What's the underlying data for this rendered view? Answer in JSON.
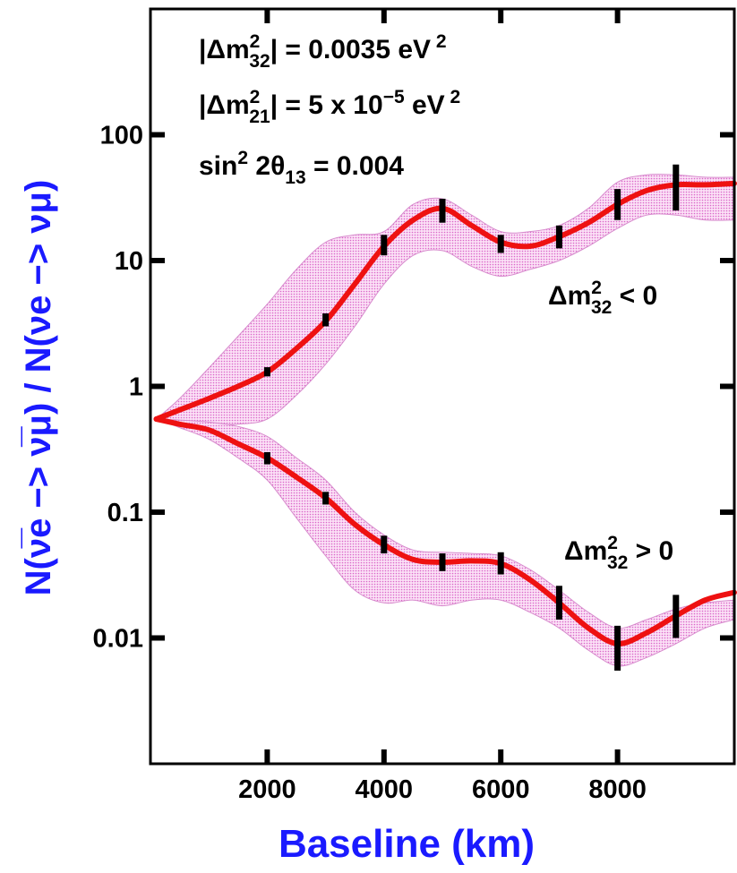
{
  "chart_data": {
    "type": "line",
    "xlabel": "Baseline   (km)",
    "ylabel": "N(ν̅e −> ν̅μ) / N(νe −> νμ)",
    "y_scale": "log",
    "xlim": [
      0,
      10000
    ],
    "ylim": [
      0.001,
      1000
    ],
    "x_ticks": [
      2000,
      4000,
      6000,
      8000
    ],
    "y_ticks": [
      0.01,
      0.1,
      1,
      10,
      100
    ],
    "y_tick_labels": [
      "0.01",
      "0.1",
      "1",
      "10",
      "100"
    ],
    "grid": false,
    "colors": {
      "curve": "#ee1111",
      "band": "#f3b6ea",
      "error_bar": "#000000",
      "axis_title": "#1a1aff"
    },
    "annotations": {
      "line1": {
        "prefix": "|Δm",
        "sup": "2",
        "sub": "32",
        "rest": "| = 0.0035 eV",
        "unit_sup": " 2"
      },
      "line2": {
        "prefix": "|Δm",
        "sup": "2",
        "sub": "21",
        "rest": "| = 5 x 10",
        "exp": "−5",
        "rest2": " eV",
        "unit_sup": " 2"
      },
      "line3": {
        "prefix": "sin",
        "sup": "2",
        "mid": " 2θ",
        "sub": "13",
        "rest": " = 0.004"
      }
    },
    "series": [
      {
        "label": {
          "prefix": "Δm",
          "sup": "2",
          "sub": "32",
          "rest": " < 0"
        },
        "x": [
          100,
          500,
          1000,
          1500,
          2000,
          2500,
          3000,
          3500,
          4000,
          4500,
          5000,
          5500,
          6000,
          6500,
          7000,
          7500,
          8000,
          8500,
          9000,
          9500,
          10000
        ],
        "y": [
          0.55,
          0.65,
          0.8,
          1.0,
          1.3,
          2.0,
          3.3,
          6.5,
          13,
          21,
          26,
          19,
          14,
          13,
          15.5,
          20,
          28,
          36,
          40,
          40,
          41
        ],
        "band_upper": [
          0.55,
          0.8,
          1.4,
          2.5,
          4.5,
          8.5,
          14,
          16,
          17,
          28,
          31,
          23,
          17,
          17,
          19,
          26,
          42,
          48,
          48,
          46,
          46
        ],
        "band_lower": [
          0.55,
          0.52,
          0.5,
          0.5,
          0.55,
          0.85,
          1.5,
          3.0,
          6.5,
          11,
          12,
          9,
          7.5,
          8.5,
          10,
          13,
          18,
          23,
          23,
          21,
          21
        ],
        "error_bars": [
          {
            "x": 2000,
            "low": 1.2,
            "high": 1.42
          },
          {
            "x": 3000,
            "low": 3.0,
            "high": 3.8
          },
          {
            "x": 4000,
            "low": 11,
            "high": 16
          },
          {
            "x": 5000,
            "low": 20,
            "high": 31
          },
          {
            "x": 6000,
            "low": 11.5,
            "high": 16
          },
          {
            "x": 7000,
            "low": 12.5,
            "high": 19
          },
          {
            "x": 8000,
            "low": 21,
            "high": 37
          },
          {
            "x": 9000,
            "low": 25,
            "high": 58
          }
        ]
      },
      {
        "label": {
          "prefix": "Δm",
          "sup": "2",
          "sub": "32",
          "rest": " > 0"
        },
        "x": [
          100,
          500,
          1000,
          1500,
          2000,
          2500,
          3000,
          3500,
          4000,
          4500,
          5000,
          5500,
          6000,
          6500,
          7000,
          7500,
          8000,
          8500,
          9000,
          9500,
          10000
        ],
        "y": [
          0.55,
          0.5,
          0.45,
          0.35,
          0.27,
          0.19,
          0.13,
          0.08,
          0.055,
          0.042,
          0.04,
          0.041,
          0.039,
          0.029,
          0.019,
          0.012,
          0.009,
          0.011,
          0.015,
          0.02,
          0.023
        ],
        "band_upper": [
          0.55,
          0.54,
          0.52,
          0.48,
          0.4,
          0.27,
          0.18,
          0.1,
          0.066,
          0.05,
          0.048,
          0.047,
          0.045,
          0.035,
          0.024,
          0.016,
          0.012,
          0.014,
          0.017,
          0.019,
          0.02
        ],
        "band_lower": [
          0.55,
          0.47,
          0.38,
          0.27,
          0.18,
          0.09,
          0.045,
          0.024,
          0.019,
          0.02,
          0.018,
          0.02,
          0.02,
          0.016,
          0.012,
          0.008,
          0.006,
          0.007,
          0.009,
          0.012,
          0.014
        ],
        "error_bars": [
          {
            "x": 2000,
            "low": 0.24,
            "high": 0.3
          },
          {
            "x": 3000,
            "low": 0.115,
            "high": 0.145
          },
          {
            "x": 4000,
            "low": 0.047,
            "high": 0.065
          },
          {
            "x": 5000,
            "low": 0.034,
            "high": 0.047
          },
          {
            "x": 6000,
            "low": 0.032,
            "high": 0.048
          },
          {
            "x": 7000,
            "low": 0.014,
            "high": 0.026
          },
          {
            "x": 8000,
            "low": 0.0055,
            "high": 0.0125
          },
          {
            "x": 9000,
            "low": 0.01,
            "high": 0.022
          }
        ]
      }
    ]
  }
}
